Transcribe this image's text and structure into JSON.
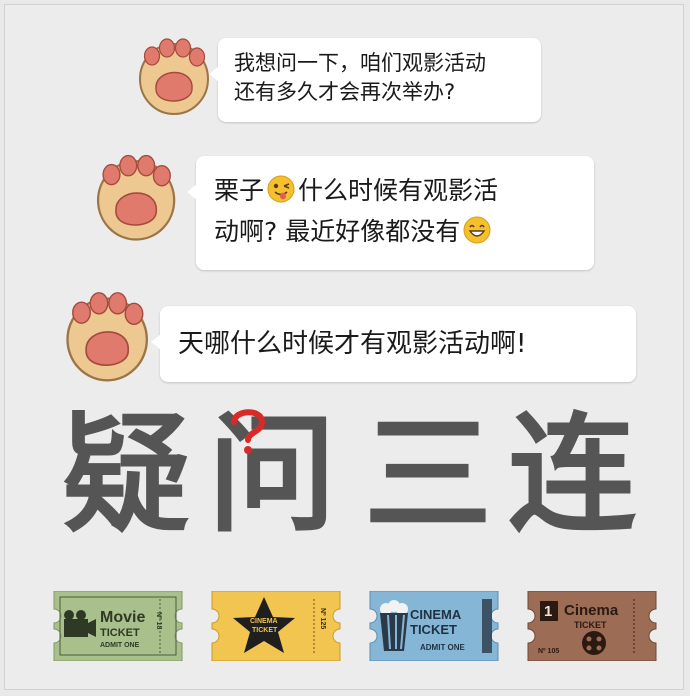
{
  "messages": [
    {
      "lines": [
        "我想问一下，咱们观影活动",
        "还有多久才会再次举办?"
      ]
    },
    {
      "lines": [
        "栗子",
        "什么时候有观影活",
        "动啊? 最近好像都没有"
      ]
    },
    {
      "lines": [
        "天哪什么时候才有观影活动啊!"
      ]
    }
  ],
  "emojis": {
    "wink": "wink-tongue-emoji",
    "grin": "grin-emoji"
  },
  "title": {
    "chars": [
      "疑",
      "问",
      "三",
      "连"
    ]
  },
  "tickets": [
    {
      "word1": "Movie",
      "word2": "TICKET",
      "sub": "ADMIT ONE",
      "num": "Nº 18",
      "color": "#a8c08c"
    },
    {
      "word1": "CINEMA",
      "word2": "TICKET",
      "sub": "",
      "num": "Nº 125",
      "color": "#f1c550"
    },
    {
      "word1": "CINEMA",
      "word2": "TICKET",
      "sub": "ADMIT ONE",
      "num": "",
      "color": "#85b6d6"
    },
    {
      "word1": "Cinema",
      "word2": "TICKET",
      "sub": "",
      "num": "Nº 105",
      "badge": "1",
      "color": "#9c6c55"
    }
  ],
  "colors": {
    "title": "#555555",
    "question_mark": "#d92a2a",
    "paw_fill": "#edc891",
    "paw_pad": "#e07a6c"
  }
}
